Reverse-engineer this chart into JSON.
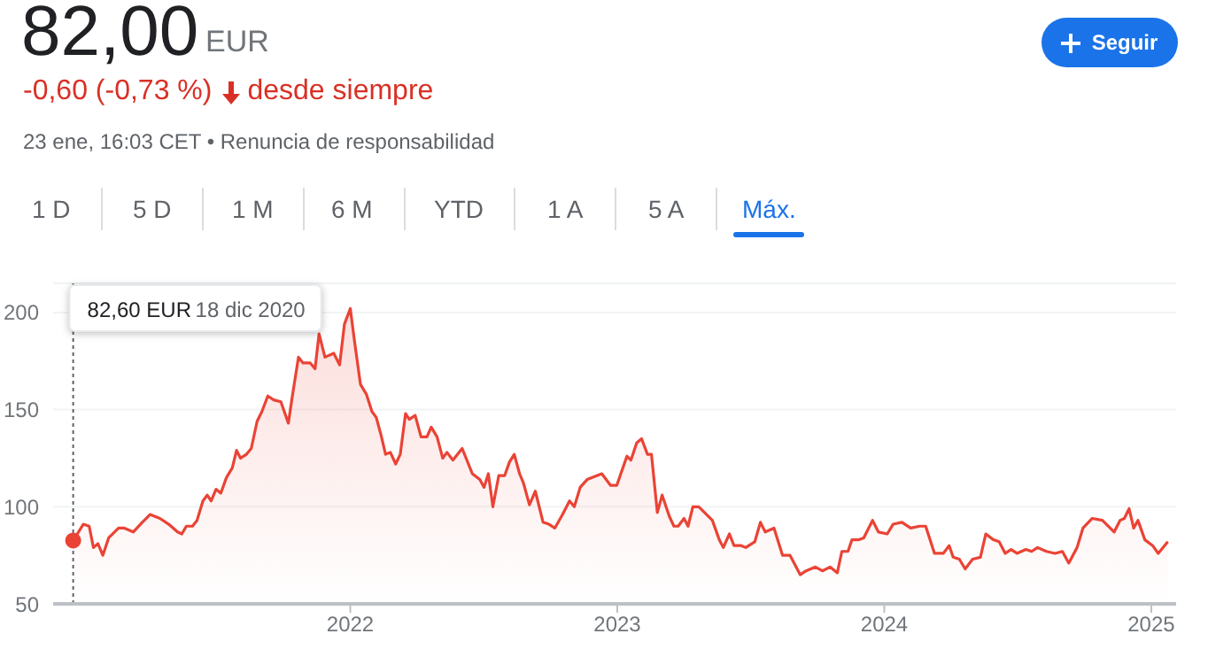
{
  "chart_data": {
    "type": "area",
    "title": "82,00",
    "annotations": [
      "EUR",
      "-0,60 (-0,73 %)",
      "desde siempre",
      "23 ene, 16:03 CET • Renuncia de responsabilidad",
      "Seguir",
      "1 D",
      "5 D",
      "1 M",
      "6 M",
      "YTD",
      "1 A",
      "5 A",
      "Máx.",
      "82,60 EUR",
      "18 dic 2020"
    ],
    "color": "#ea4335",
    "x": [
      2020.962,
      2021.0,
      2021.022,
      2021.038,
      2021.055,
      2021.073,
      2021.095,
      2021.132,
      2021.154,
      2021.187,
      2021.221,
      2021.25,
      2021.287,
      2021.32,
      2021.353,
      2021.369,
      2021.386,
      2021.409,
      2021.426,
      2021.448,
      2021.464,
      2021.479,
      2021.497,
      2021.515,
      2021.536,
      2021.558,
      2021.574,
      2021.589,
      2021.611,
      2021.629,
      2021.651,
      2021.669,
      2021.691,
      2021.713,
      2021.74,
      2021.768,
      2021.783,
      2021.806,
      2021.823,
      2021.85,
      2021.868,
      2021.883,
      2021.905,
      2021.938,
      2021.96,
      2021.978,
      2022.0,
      2022.015,
      2022.038,
      2022.06,
      2022.081,
      2022.097,
      2022.115,
      2022.132,
      2022.15,
      2022.17,
      2022.187,
      2022.207,
      2022.221,
      2022.243,
      2022.265,
      2022.287,
      2022.303,
      2022.325,
      2022.346,
      2022.362,
      2022.384,
      2022.419,
      2022.457,
      2022.485,
      2022.501,
      2022.517,
      2022.534,
      2022.556,
      2022.578,
      2022.596,
      2022.614,
      2022.634,
      2022.649,
      2022.671,
      2022.693,
      2022.722,
      2022.744,
      2022.766,
      2022.795,
      2022.821,
      2022.839,
      2022.861,
      2022.887,
      2022.942,
      2022.975,
      2022.998,
      2023.036,
      2023.051,
      2023.073,
      2023.091,
      2023.113,
      2023.128,
      2023.15,
      2023.168,
      2023.195,
      2023.212,
      2023.228,
      2023.25,
      2023.265,
      2023.283,
      2023.305,
      2023.327,
      2023.356,
      2023.382,
      2023.397,
      2023.42,
      2023.437,
      2023.464,
      2023.481,
      2023.515,
      2023.536,
      2023.554,
      2023.587,
      2023.619,
      2023.647,
      2023.685,
      2023.707,
      2023.742,
      2023.768,
      2023.797,
      2023.824,
      2023.841,
      2023.864,
      2023.879,
      2023.905,
      2023.923,
      2023.956,
      2023.978,
      2024.011,
      2024.033,
      2024.066,
      2024.099,
      2024.132,
      2024.155,
      2024.188,
      2024.221,
      2024.243,
      2024.258,
      2024.281,
      2024.303,
      2024.331,
      2024.36,
      2024.38,
      2024.409,
      2024.43,
      2024.453,
      2024.475,
      2024.497,
      2024.53,
      2024.552,
      2024.574,
      2024.607,
      2024.64,
      2024.667,
      2024.691,
      2024.722,
      2024.744,
      2024.779,
      2024.817,
      2024.861,
      2024.883,
      2024.899,
      2024.917,
      2024.934,
      2024.95,
      2024.976,
      2025.005,
      2025.026,
      2025.062
    ],
    "values": [
      82.6,
      91,
      90,
      79,
      81,
      75,
      84,
      89,
      89,
      87,
      92,
      96,
      94,
      91,
      87,
      86,
      90,
      90,
      93,
      103,
      106,
      103,
      109,
      107,
      115,
      120,
      129,
      125,
      127,
      130,
      144,
      149,
      157,
      155,
      154,
      143,
      157,
      177,
      174,
      174,
      171,
      189,
      177,
      179,
      173,
      194,
      202,
      186,
      163,
      158,
      149,
      146,
      137,
      127,
      128,
      122,
      127,
      148,
      145,
      147,
      136,
      136,
      141,
      136,
      125,
      128,
      124,
      130,
      117,
      114,
      110,
      117,
      100,
      116,
      116,
      123,
      127,
      117,
      112,
      101,
      108,
      92,
      91,
      89,
      96,
      103,
      100,
      110,
      114,
      117,
      111,
      111,
      126,
      124,
      133,
      135,
      127,
      127,
      97,
      106,
      95,
      90,
      90,
      94,
      90,
      100,
      100,
      97,
      93,
      83,
      79,
      86,
      80,
      80,
      79,
      82,
      92,
      87,
      89,
      75,
      75,
      65,
      67,
      69,
      67,
      69,
      66,
      77,
      77,
      83,
      83,
      84,
      93,
      87,
      86,
      91,
      92,
      89,
      90,
      90,
      76,
      76,
      80,
      74,
      73,
      68,
      73,
      74,
      86,
      83,
      82,
      76,
      78,
      76,
      78,
      77,
      79,
      77,
      76,
      77,
      71,
      79,
      89,
      94,
      93,
      87,
      93,
      94,
      99,
      89,
      93,
      83,
      80,
      76,
      82
    ],
    "xlim": [
      2020.887,
      2025.093
    ],
    "xticks": [
      2022,
      2023,
      2024,
      2025
    ],
    "ylim": [
      50,
      215
    ],
    "yticks": [
      50,
      100,
      150,
      200
    ],
    "grid": "y",
    "ref_lines": [
      {
        "axis": "x",
        "value": 2020.962,
        "line_style": "dotted"
      }
    ]
  }
}
